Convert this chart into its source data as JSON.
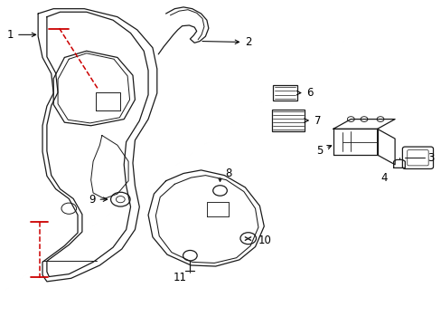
{
  "bg_color": "#ffffff",
  "line_color": "#1a1a1a",
  "red_color": "#cc0000",
  "label_fontsize": 8.5,
  "figsize": [
    4.89,
    3.6
  ],
  "dpi": 100
}
